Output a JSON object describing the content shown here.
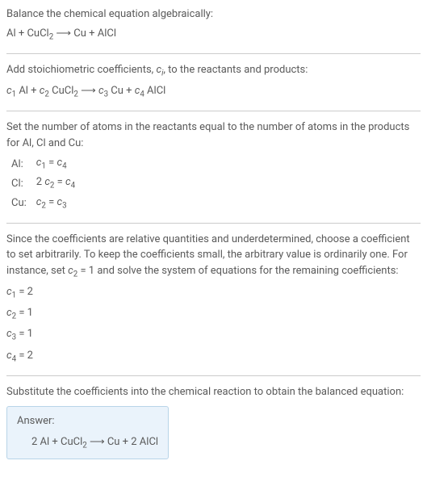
{
  "intro": {
    "line1": "Balance the chemical equation algebraically:",
    "eq_lhs1": "Al + CuCl",
    "eq_sub1": "2",
    "eq_arrow": " ⟶ Cu + AlCl"
  },
  "step1": {
    "line1_a": "Add stoichiometric coefficients, ",
    "line1_ci": "c",
    "line1_i": "i",
    "line1_b": ", to the reactants and products:",
    "c1": "c",
    "n1": "1",
    "t1": " Al + ",
    "c2": "c",
    "n2": "2",
    "t2": " CuCl",
    "s2": "2",
    "t3": " ⟶ ",
    "c3": "c",
    "n3": "3",
    "t4": " Cu + ",
    "c4": "c",
    "n4": "4",
    "t5": " AlCl"
  },
  "step2": {
    "line1": "Set the number of atoms in the reactants equal to the number of atoms in the products for Al, Cl and Cu:",
    "rows": [
      {
        "label": "Al:",
        "c_a": "c",
        "n_a": "1",
        "mid": " = ",
        "c_b": "c",
        "n_b": "4",
        "pre": ""
      },
      {
        "label": "Cl:",
        "c_a": "c",
        "n_a": "2",
        "mid": " = ",
        "c_b": "c",
        "n_b": "4",
        "pre": "2 "
      },
      {
        "label": "Cu:",
        "c_a": "c",
        "n_a": "2",
        "mid": " = ",
        "c_b": "c",
        "n_b": "3",
        "pre": ""
      }
    ]
  },
  "step3": {
    "line1_a": "Since the coefficients are relative quantities and underdetermined, choose a coefficient to set arbitrarily. To keep the coefficients small, the arbitrary value is ordinarily one. For instance, set ",
    "line1_c": "c",
    "line1_n": "2",
    "line1_b": " = 1 and solve the system of equations for the remaining coefficients:",
    "solutions": [
      {
        "c": "c",
        "n": "1",
        "val": " = 2"
      },
      {
        "c": "c",
        "n": "2",
        "val": " = 1"
      },
      {
        "c": "c",
        "n": "3",
        "val": " = 1"
      },
      {
        "c": "c",
        "n": "4",
        "val": " = 2"
      }
    ]
  },
  "step4": {
    "line1": "Substitute the coefficients into the chemical reaction to obtain the balanced equation:"
  },
  "answer": {
    "label": "Answer:",
    "eq_a": "2 Al + CuCl",
    "eq_sub": "2",
    "eq_b": " ⟶ Cu + 2 AlCl"
  },
  "colors": {
    "text": "#5a5a5a",
    "hr": "#cccccc",
    "answer_bg": "#eaf3fb",
    "answer_border": "#b8d4e8"
  }
}
